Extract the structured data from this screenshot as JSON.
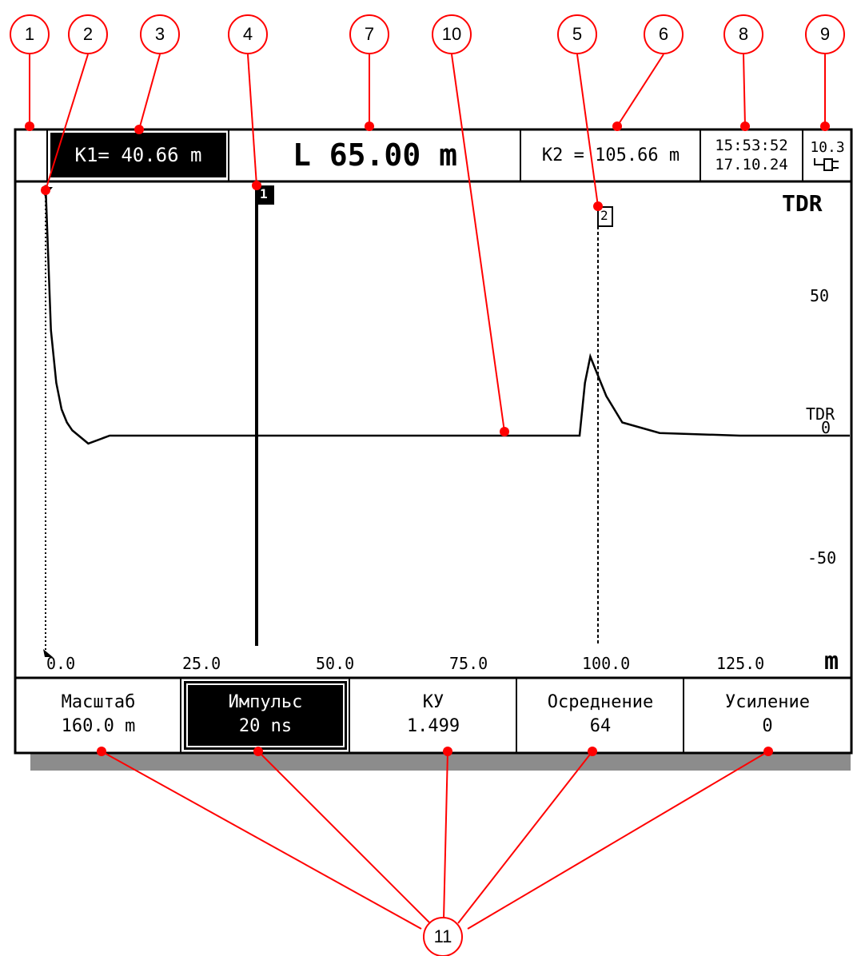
{
  "header": {
    "k1": "K1= 40.66 m",
    "length": "L 65.00 m",
    "k2": "K2 = 105.66 m",
    "time": "15:53:52",
    "date": "17.10.24",
    "battery": "10.3"
  },
  "plot": {
    "mode_label": "TDR",
    "trace_label": "TDR",
    "marker1": "1",
    "marker2": "2",
    "y_ticks": [
      "50",
      "0",
      "-50"
    ],
    "x_ticks": [
      "0.0",
      "25.0",
      "50.0",
      "75.0",
      "100.0",
      "125.0"
    ],
    "x_unit": "m"
  },
  "softkeys": [
    {
      "title": "Масштаб",
      "value": "160.0 m"
    },
    {
      "title": "Импульс",
      "value": "20 ns"
    },
    {
      "title": "КУ",
      "value": "1.499"
    },
    {
      "title": "Осреднение",
      "value": "64"
    },
    {
      "title": "Усиление",
      "value": "0"
    }
  ],
  "callouts": [
    "1",
    "2",
    "3",
    "4",
    "7",
    "10",
    "5",
    "6",
    "8",
    "9",
    "11"
  ],
  "colors": {
    "annotation": "#ff0000",
    "screen_bg": "#ffffff",
    "fg": "#000000",
    "shadow": "#8c8c8c"
  },
  "chart_data": {
    "type": "line",
    "x_unit": "m",
    "xlim": [
      0,
      160
    ],
    "ylim": [
      -100,
      100
    ],
    "markers": [
      {
        "name": "1",
        "x": 40.66
      },
      {
        "name": "2",
        "x": 105.66
      }
    ],
    "x": [
      0,
      1,
      2,
      3,
      4,
      5,
      8,
      12,
      20,
      40,
      60,
      80,
      100,
      101,
      102,
      103,
      105,
      108,
      115,
      130,
      160
    ],
    "values": [
      95,
      40,
      20,
      10,
      5,
      2,
      -3,
      0,
      0,
      0,
      0,
      0,
      0,
      20,
      30,
      25,
      15,
      5,
      1,
      0,
      0
    ]
  }
}
